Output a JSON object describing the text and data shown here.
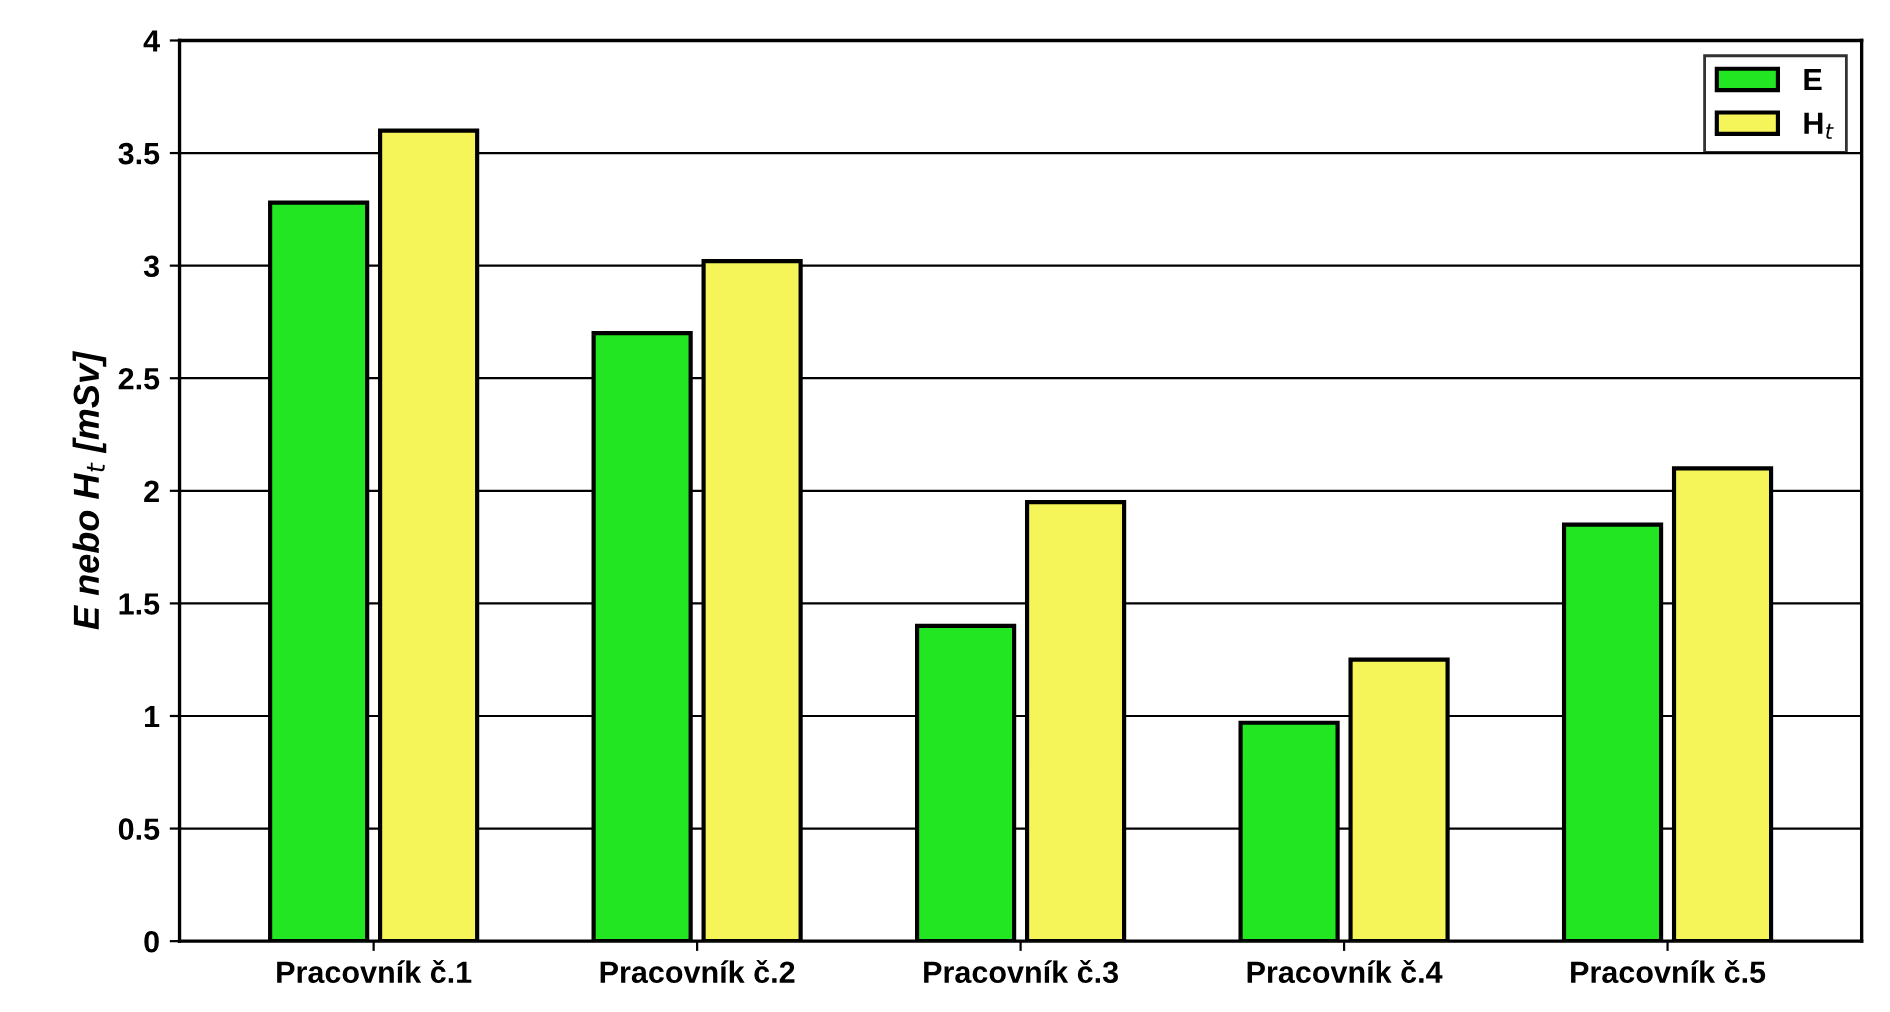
{
  "chart_data": {
    "type": "bar",
    "ylabel": "E nebo H$_{t}$ [mSv]",
    "categories": [
      "Pracovník č.1",
      "Pracovník č.2",
      "Pracovník č.3",
      "Pracovník č.4",
      "Pracovník č.5"
    ],
    "series": [
      {
        "name": "E",
        "color": "#22e622",
        "values": [
          3.28,
          2.7,
          1.4,
          0.97,
          1.85
        ]
      },
      {
        "name": "H$_{t}$",
        "color": "#f5f55a",
        "values": [
          3.6,
          3.02,
          1.95,
          1.25,
          2.1
        ]
      }
    ],
    "ylim": [
      0,
      4
    ],
    "yticks": [
      0,
      0.5,
      1,
      1.5,
      2,
      2.5,
      3,
      3.5,
      4
    ],
    "grid": "y",
    "legend": "top right"
  }
}
